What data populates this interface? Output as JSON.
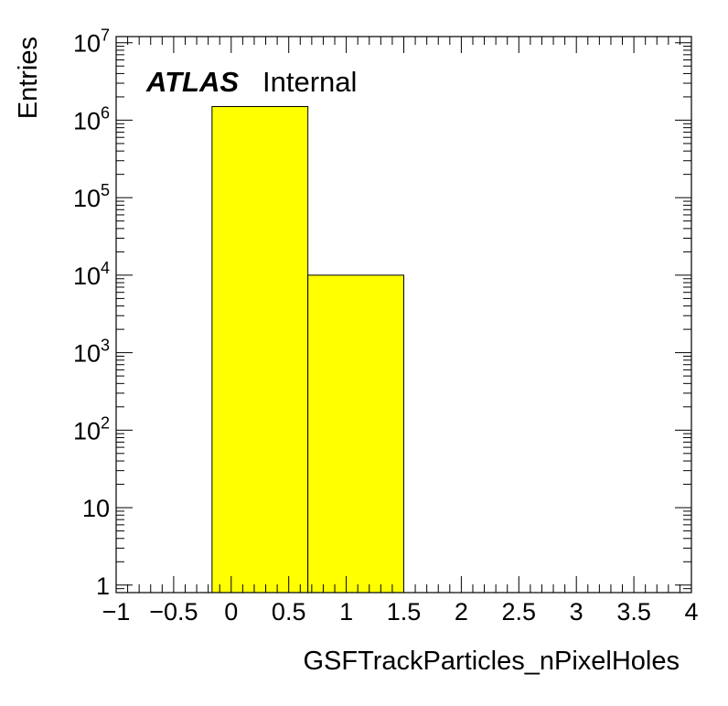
{
  "chart_data": {
    "type": "bar",
    "style": "histogram",
    "xlabel": "GSFTrackParticles_nPixelHoles",
    "ylabel": "Entries",
    "xlim": [
      -1,
      4
    ],
    "ylim": [
      0.8,
      12000000
    ],
    "yscale": "log",
    "x_ticks": [
      "−1",
      "−0.5",
      "0",
      "0.5",
      "1",
      "1.5",
      "2",
      "2.5",
      "3",
      "3.5",
      "4"
    ],
    "y_ticks": [
      {
        "base": "1",
        "exp": ""
      },
      {
        "base": "10",
        "exp": ""
      },
      {
        "base": "10",
        "exp": "2"
      },
      {
        "base": "10",
        "exp": "3"
      },
      {
        "base": "10",
        "exp": "4"
      },
      {
        "base": "10",
        "exp": "5"
      },
      {
        "base": "10",
        "exp": "6"
      },
      {
        "base": "10",
        "exp": "7"
      }
    ],
    "bins": [
      {
        "low": -0.1667,
        "high": 0.6667,
        "value": 1500000
      },
      {
        "low": 0.6667,
        "high": 1.5,
        "value": 10000
      }
    ],
    "fill_color": "#ffff00",
    "line_color": "#000000",
    "grid": false,
    "annotation": {
      "bold": "ATLAS",
      "text": "Internal"
    }
  }
}
